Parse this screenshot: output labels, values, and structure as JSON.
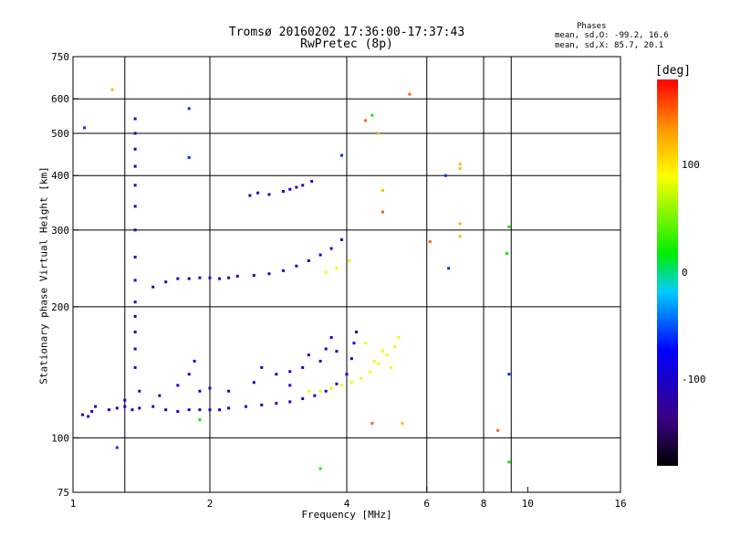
{
  "chart_data": {
    "type": "scatter",
    "title": "Tromsø 20160202 17:36:00-17:37:43",
    "subtitle": "RwPretec (8p)",
    "stats": {
      "header": "Phases",
      "o_line": "mean, sd,O: -99.2, 16.6",
      "x_line": "mean, sd,X:  85.7, 20.1"
    },
    "xlabel": "Frequency [MHz]",
    "ylabel": "Stationary phase Virtual Height [km]",
    "xscale": "log",
    "yscale": "log",
    "xlim": [
      1,
      16
    ],
    "ylim": [
      75,
      750
    ],
    "x_ticks": [
      "1",
      "2",
      "4",
      "6",
      "8",
      "10",
      "16"
    ],
    "x_tick_values": [
      1,
      2,
      4,
      6,
      8,
      10,
      16
    ],
    "y_ticks": [
      "750",
      "600",
      "500",
      "400",
      "300",
      "200",
      "100",
      "75"
    ],
    "y_tick_values": [
      750,
      600,
      500,
      400,
      300,
      200,
      100,
      75
    ],
    "x_grid": [
      1.3,
      2,
      4,
      6,
      8,
      9.2
    ],
    "y_grid": [
      100,
      200,
      300,
      400,
      500,
      600
    ],
    "colorbar": {
      "unit": "[deg]",
      "range": [
        -180,
        180
      ],
      "ticks": [
        "100",
        "0",
        "-100"
      ],
      "tick_values": [
        100,
        0,
        -100
      ]
    },
    "series": [
      {
        "color_phase": -100,
        "trace": "O-mode lower (E/F1)",
        "points": [
          [
            1.05,
            113
          ],
          [
            1.08,
            112
          ],
          [
            1.1,
            115
          ],
          [
            1.12,
            118
          ],
          [
            1.2,
            116
          ],
          [
            1.25,
            117
          ],
          [
            1.3,
            118
          ],
          [
            1.35,
            116
          ],
          [
            1.4,
            117
          ],
          [
            1.5,
            118
          ],
          [
            1.6,
            116
          ],
          [
            1.7,
            115
          ],
          [
            1.8,
            116
          ],
          [
            1.9,
            116
          ],
          [
            2.0,
            116
          ],
          [
            2.1,
            116
          ],
          [
            2.2,
            117
          ],
          [
            2.4,
            118
          ],
          [
            2.6,
            119
          ],
          [
            2.8,
            120
          ],
          [
            3.0,
            121
          ],
          [
            3.2,
            123
          ],
          [
            3.4,
            125
          ],
          [
            3.6,
            128
          ],
          [
            3.8,
            133
          ],
          [
            4.0,
            140
          ],
          [
            4.1,
            152
          ],
          [
            4.15,
            165
          ],
          [
            4.2,
            175
          ]
        ]
      },
      {
        "color_phase": -100,
        "trace": "O-mode lower scatter",
        "points": [
          [
            1.3,
            122
          ],
          [
            1.4,
            128
          ],
          [
            1.55,
            125
          ],
          [
            1.7,
            132
          ],
          [
            1.8,
            140
          ],
          [
            1.9,
            128
          ],
          [
            2.0,
            130
          ],
          [
            2.2,
            128
          ],
          [
            2.5,
            134
          ],
          [
            2.8,
            140
          ],
          [
            3.0,
            142
          ],
          [
            3.2,
            145
          ],
          [
            3.5,
            150
          ],
          [
            3.6,
            160
          ],
          [
            3.7,
            170
          ],
          [
            3.8,
            158
          ],
          [
            1.85,
            150
          ],
          [
            2.6,
            145
          ],
          [
            3.3,
            155
          ],
          [
            3.0,
            132
          ]
        ]
      },
      {
        "color_phase": -100,
        "trace": "O-mode F2",
        "points": [
          [
            1.5,
            222
          ],
          [
            1.6,
            228
          ],
          [
            1.7,
            232
          ],
          [
            1.8,
            232
          ],
          [
            1.9,
            233
          ],
          [
            2.0,
            233
          ],
          [
            2.1,
            232
          ],
          [
            2.2,
            233
          ],
          [
            2.3,
            235
          ],
          [
            2.5,
            236
          ],
          [
            2.7,
            238
          ],
          [
            2.9,
            242
          ],
          [
            3.1,
            248
          ],
          [
            3.3,
            255
          ],
          [
            3.5,
            263
          ],
          [
            3.7,
            272
          ],
          [
            3.9,
            285
          ]
        ]
      },
      {
        "color_phase": -100,
        "trace": "O-mode F2 echo",
        "points": [
          [
            2.45,
            360
          ],
          [
            2.55,
            365
          ],
          [
            2.7,
            362
          ],
          [
            2.9,
            368
          ],
          [
            3.0,
            372
          ],
          [
            3.1,
            376
          ],
          [
            3.2,
            380
          ],
          [
            3.35,
            388
          ]
        ]
      },
      {
        "color_phase": -110,
        "trace": "vertical streak",
        "points": [
          [
            1.37,
            145
          ],
          [
            1.37,
            160
          ],
          [
            1.37,
            175
          ],
          [
            1.37,
            190
          ],
          [
            1.37,
            205
          ],
          [
            1.37,
            230
          ],
          [
            1.37,
            260
          ],
          [
            1.37,
            300
          ],
          [
            1.37,
            340
          ],
          [
            1.37,
            380
          ],
          [
            1.37,
            420
          ],
          [
            1.37,
            460
          ],
          [
            1.37,
            500
          ],
          [
            1.37,
            540
          ]
        ]
      },
      {
        "color_phase": 85,
        "trace": "X-mode",
        "points": [
          [
            3.3,
            128
          ],
          [
            3.5,
            128
          ],
          [
            3.7,
            130
          ],
          [
            3.9,
            132
          ],
          [
            4.1,
            134
          ],
          [
            4.3,
            137
          ],
          [
            4.5,
            142
          ],
          [
            4.7,
            148
          ],
          [
            4.9,
            155
          ],
          [
            5.1,
            162
          ],
          [
            5.2,
            170
          ],
          [
            4.6,
            150
          ],
          [
            4.8,
            158
          ],
          [
            5.0,
            145
          ],
          [
            4.4,
            165
          ],
          [
            3.6,
            240
          ],
          [
            3.8,
            245
          ],
          [
            4.05,
            255
          ]
        ]
      },
      {
        "color_phase": 150,
        "trace": "sporadic",
        "points": [
          [
            4.4,
            535
          ],
          [
            5.5,
            615
          ],
          [
            4.8,
            330
          ],
          [
            6.1,
            282
          ],
          [
            4.55,
            108
          ],
          [
            8.6,
            104
          ]
        ]
      },
      {
        "color_phase": 120,
        "trace": "sporadic",
        "points": [
          [
            1.22,
            630
          ],
          [
            4.8,
            370
          ],
          [
            7.1,
            425
          ],
          [
            7.1,
            415
          ],
          [
            7.1,
            310
          ],
          [
            7.1,
            290
          ],
          [
            4.7,
            500
          ],
          [
            5.3,
            108
          ]
        ]
      },
      {
        "color_phase": 20,
        "trace": "sporadic",
        "points": [
          [
            4.55,
            550
          ],
          [
            9.1,
            305
          ],
          [
            9.0,
            265
          ],
          [
            1.9,
            110
          ],
          [
            3.5,
            85
          ],
          [
            9.1,
            88
          ]
        ]
      },
      {
        "color_phase": -60,
        "trace": "sporadic",
        "points": [
          [
            1.06,
            515
          ],
          [
            1.8,
            570
          ],
          [
            1.8,
            440
          ],
          [
            3.9,
            445
          ],
          [
            6.7,
            245
          ],
          [
            6.6,
            400
          ],
          [
            9.1,
            140
          ],
          [
            1.25,
            95
          ]
        ]
      }
    ]
  }
}
